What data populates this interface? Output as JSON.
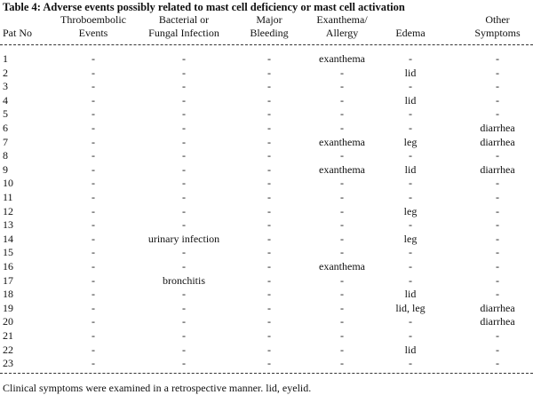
{
  "title": "Table 4: Adverse events possibly related to mast cell deficiency or mast cell activation",
  "table": {
    "header": [
      [
        "",
        "Pat No"
      ],
      [
        "Throboembolic",
        "Events"
      ],
      [
        "Bacterial or",
        "Fungal Infection"
      ],
      [
        "Major",
        "Bleeding"
      ],
      [
        "Exanthema/",
        "Allergy"
      ],
      [
        "",
        "Edema"
      ],
      [
        "Other",
        "Symptoms"
      ]
    ],
    "rows": [
      [
        "1",
        "-",
        "-",
        "-",
        "exanthema",
        "-",
        "-"
      ],
      [
        "2",
        "-",
        "-",
        "-",
        "-",
        "lid",
        "-"
      ],
      [
        "3",
        "-",
        "-",
        "-",
        "-",
        "-",
        "-"
      ],
      [
        "4",
        "-",
        "-",
        "-",
        "-",
        "lid",
        "-"
      ],
      [
        "5",
        "-",
        "-",
        "-",
        "-",
        "-",
        "-"
      ],
      [
        "6",
        "-",
        "-",
        "-",
        "-",
        "-",
        "diarrhea"
      ],
      [
        "7",
        "-",
        "-",
        "-",
        "exanthema",
        "leg",
        "diarrhea"
      ],
      [
        "8",
        "-",
        "-",
        "-",
        "-",
        "-",
        "-"
      ],
      [
        "9",
        "-",
        "-",
        "-",
        "exanthema",
        "lid",
        "diarrhea"
      ],
      [
        "10",
        "-",
        "-",
        "-",
        "-",
        "-",
        "-"
      ],
      [
        "11",
        "-",
        "-",
        "-",
        "-",
        "-",
        "-"
      ],
      [
        "12",
        "-",
        "-",
        "-",
        "-",
        "leg",
        "-"
      ],
      [
        "13",
        "-",
        "-",
        "-",
        "-",
        "-",
        "-"
      ],
      [
        "14",
        "-",
        "urinary infection",
        "-",
        "-",
        "leg",
        "-"
      ],
      [
        "15",
        "-",
        "-",
        "-",
        "-",
        "-",
        "-"
      ],
      [
        "16",
        "-",
        "-",
        "-",
        "exanthema",
        "-",
        "-"
      ],
      [
        "17",
        "-",
        "bronchitis",
        "-",
        "-",
        "-",
        "-"
      ],
      [
        "18",
        "-",
        "-",
        "-",
        "-",
        "lid",
        "-"
      ],
      [
        "19",
        "-",
        "-",
        "-",
        "-",
        "lid, leg",
        "diarrhea"
      ],
      [
        "20",
        "-",
        "-",
        "-",
        "-",
        "-",
        "diarrhea"
      ],
      [
        "21",
        "-",
        "-",
        "-",
        "-",
        "-",
        "-"
      ],
      [
        "22",
        "-",
        "-",
        "-",
        "-",
        "lid",
        "-"
      ],
      [
        "23",
        "-",
        "-",
        "-",
        "-",
        "-",
        "-"
      ]
    ]
  },
  "footnote": "Clinical symptoms were examined in a retrospective manner. lid, eyelid."
}
